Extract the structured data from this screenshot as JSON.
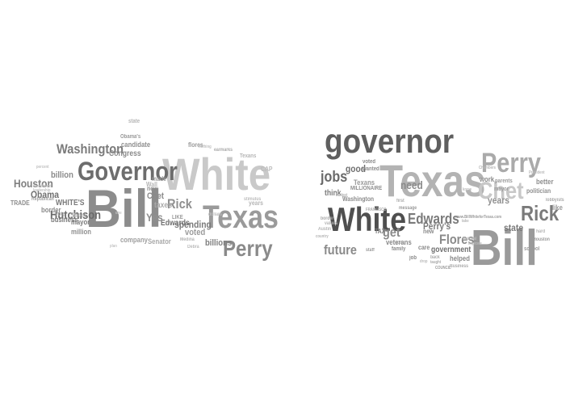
{
  "clouds": [
    {
      "words": [
        {
          "text": "Bill",
          "color": "#8c8c8c"
        },
        {
          "text": "White",
          "color": "#c9c9c9"
        },
        {
          "text": "Governor",
          "color": "#6d6d6d"
        },
        {
          "text": "Texas",
          "color": "#9a9a9a"
        },
        {
          "text": "Perry",
          "color": "#8a8a8a"
        },
        {
          "text": "Washington",
          "color": "#7a7a7a"
        },
        {
          "text": "Hutchison",
          "color": "#6a6a6a"
        },
        {
          "text": "Houston",
          "color": "#7f7f7f"
        },
        {
          "text": "Obama",
          "color": "#6f6f6f"
        },
        {
          "text": "WHITE'S",
          "color": "#7a7a7a"
        },
        {
          "text": "Rick",
          "color": "#8f8f8f"
        },
        {
          "text": "Chet",
          "color": "#8a8a8a"
        },
        {
          "text": "spending",
          "color": "#7a7a7a"
        },
        {
          "text": "Edwards",
          "color": "#6f6f6f"
        },
        {
          "text": "voted",
          "color": "#9a9a9a"
        },
        {
          "text": "billions",
          "color": "#7f7f7f"
        },
        {
          "text": "Yes",
          "color": "#8f8f8f"
        },
        {
          "text": "taxes",
          "color": "#aaaaaa"
        },
        {
          "text": "Congress",
          "color": "#8a8a8a"
        },
        {
          "text": "candidate",
          "color": "#8f8f8f"
        },
        {
          "text": "billion",
          "color": "#8a8a8a"
        },
        {
          "text": "business",
          "color": "#7a7a7a"
        },
        {
          "text": "border",
          "color": "#8a8a8a"
        },
        {
          "text": "mayor",
          "color": "#7a7a7a"
        },
        {
          "text": "million",
          "color": "#8f8f8f"
        },
        {
          "text": "company",
          "color": "#9f9f9f"
        },
        {
          "text": "Senator",
          "color": "#aaaaaa"
        },
        {
          "text": "Street",
          "color": "#b5b5b5"
        },
        {
          "text": "Wall",
          "color": "#b5b5b5"
        },
        {
          "text": "TRADE",
          "color": "#8a8a8a"
        },
        {
          "text": "CAP",
          "color": "#bbbbbb"
        },
        {
          "text": "made",
          "color": "#9a9a9a"
        },
        {
          "text": "now",
          "color": "#8a8a8a"
        },
        {
          "text": "Obama's",
          "color": "#9a9a9a"
        },
        {
          "text": "LIKE",
          "color": "#9a9a9a"
        },
        {
          "text": "Vote",
          "color": "#aaaaaa"
        },
        {
          "text": "years",
          "color": "#b5b5b5"
        },
        {
          "text": "state",
          "color": "#b5b5b5"
        },
        {
          "text": "flores",
          "color": "#9a9a9a"
        },
        {
          "text": "Republican",
          "color": "#a0a0a0"
        },
        {
          "text": "Texans",
          "color": "#b5b5b5"
        },
        {
          "text": "earmarks",
          "color": "#aaaaaa"
        },
        {
          "text": "Medina",
          "color": "#b5b5b5"
        },
        {
          "text": "dollars",
          "color": "#bdbdbd"
        },
        {
          "text": "stimulus",
          "color": "#bdbdbd"
        },
        {
          "text": "Debra",
          "color": "#bbbbbb"
        },
        {
          "text": "leadership",
          "color": "#c0c0c0"
        },
        {
          "text": "investment",
          "color": "#c0c0c0"
        },
        {
          "text": "percent",
          "color": "#c0c0c0"
        },
        {
          "text": "nothing",
          "color": "#c0c0c0"
        },
        {
          "text": "plan",
          "color": "#c5c5c5"
        },
        {
          "text": "one",
          "color": "#c5c5c5"
        }
      ]
    },
    {
      "words": [
        {
          "text": "governor",
          "color": "#5f5f5f"
        },
        {
          "text": "Texas",
          "color": "#b3b3b3"
        },
        {
          "text": "White",
          "color": "#4f4f4f"
        },
        {
          "text": "Bill",
          "color": "#9a9a9a"
        },
        {
          "text": "Perry",
          "color": "#aaaaaa"
        },
        {
          "text": "Chet",
          "color": "#c8c8c8"
        },
        {
          "text": "Rick",
          "color": "#7a7a7a"
        },
        {
          "text": "Edwards",
          "color": "#7a7a7a"
        },
        {
          "text": "jobs",
          "color": "#6a6a6a"
        },
        {
          "text": "future",
          "color": "#8a8a8a"
        },
        {
          "text": "Flores",
          "color": "#8a8a8a"
        },
        {
          "text": "years",
          "color": "#8f8f8f"
        },
        {
          "text": "state",
          "color": "#7a7a7a"
        },
        {
          "text": "get",
          "color": "#8a8a8a"
        },
        {
          "text": "need",
          "color": "#8a8a8a"
        },
        {
          "text": "think",
          "color": "#7a7a7a"
        },
        {
          "text": "good",
          "color": "#6f6f6f"
        },
        {
          "text": "Perry's",
          "color": "#7a7a7a"
        },
        {
          "text": "voted",
          "color": "#8a8a8a"
        },
        {
          "text": "wanted",
          "color": "#8a8a8a"
        },
        {
          "text": "Texans",
          "color": "#9a9a9a"
        },
        {
          "text": "Washington",
          "color": "#8a8a8a"
        },
        {
          "text": "MILLIONAIRE",
          "color": "#8f8f8f"
        },
        {
          "text": "veterans",
          "color": "#8a8a8a"
        },
        {
          "text": "new",
          "color": "#8a8a8a"
        },
        {
          "text": "care",
          "color": "#8a8a8a"
        },
        {
          "text": "government",
          "color": "#6f6f6f"
        },
        {
          "text": "helped",
          "color": "#8a8a8a"
        },
        {
          "text": "family",
          "color": "#8a8a8a"
        },
        {
          "text": "job",
          "color": "#8a8a8a"
        },
        {
          "text": "TAX",
          "color": "#7a7a7a"
        },
        {
          "text": "work",
          "color": "#8a8a8a"
        },
        {
          "text": "better",
          "color": "#8f8f8f"
        },
        {
          "text": "politician",
          "color": "#8f8f8f"
        },
        {
          "text": "like",
          "color": "#9a9a9a"
        },
        {
          "text": "www.BillWhiteforTexas.com",
          "color": "#9a9a9a"
        },
        {
          "text": "school",
          "color": "#9a9a9a"
        },
        {
          "text": "Houston",
          "color": "#9a9a9a"
        },
        {
          "text": "parents",
          "color": "#9a9a9a"
        },
        {
          "text": "mayor",
          "color": "#9a9a9a"
        },
        {
          "text": "lobbyists",
          "color": "#aaaaaa"
        },
        {
          "text": "message",
          "color": "#9a9a9a"
        },
        {
          "text": "staff",
          "color": "#9a9a9a"
        },
        {
          "text": "first",
          "color": "#aaaaaa"
        },
        {
          "text": "back",
          "color": "#aaaaaa"
        },
        {
          "text": "taught",
          "color": "#aaaaaa"
        },
        {
          "text": "dollar",
          "color": "#aaaaaa"
        },
        {
          "text": "Business",
          "color": "#aaaaaa"
        },
        {
          "text": "border",
          "color": "#aaaaaa"
        },
        {
          "text": "FRANCISCO",
          "color": "#aaaaaa"
        },
        {
          "text": "hard",
          "color": "#b5b5b5"
        },
        {
          "text": "country",
          "color": "#b5b5b5"
        },
        {
          "text": "COUNCIL",
          "color": "#9a9a9a"
        },
        {
          "text": "Chambers",
          "color": "#b5b5b5"
        },
        {
          "text": "Austin",
          "color": "#b5b5b5"
        },
        {
          "text": "values",
          "color": "#b5b5b5"
        },
        {
          "text": "budget",
          "color": "#b5b5b5"
        },
        {
          "text": "take",
          "color": "#b5b5b5"
        },
        {
          "text": "President",
          "color": "#bbbbbb"
        },
        {
          "text": "National",
          "color": "#bbbbbb"
        },
        {
          "text": "improve",
          "color": "#bbbbbb"
        },
        {
          "text": "know",
          "color": "#bbbbbb"
        },
        {
          "text": "drop",
          "color": "#bbbbbb"
        }
      ]
    }
  ]
}
